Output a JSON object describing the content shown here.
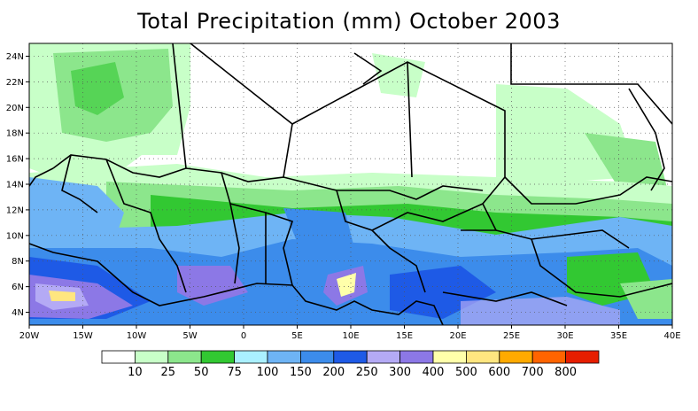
{
  "title": "Total Precipitation (mm) October 2003",
  "map": {
    "lon_range": [
      -20,
      40
    ],
    "lat_range": [
      3,
      25
    ],
    "lon_ticks": [
      {
        "value": -20,
        "label": "20W"
      },
      {
        "value": -15,
        "label": "15W"
      },
      {
        "value": -10,
        "label": "10W"
      },
      {
        "value": -5,
        "label": "5W"
      },
      {
        "value": 0,
        "label": "0"
      },
      {
        "value": 5,
        "label": "5E"
      },
      {
        "value": 10,
        "label": "10E"
      },
      {
        "value": 15,
        "label": "15E"
      },
      {
        "value": 20,
        "label": "20E"
      },
      {
        "value": 25,
        "label": "25E"
      },
      {
        "value": 30,
        "label": "30E"
      },
      {
        "value": 35,
        "label": "35E"
      },
      {
        "value": 40,
        "label": "40E"
      }
    ],
    "lat_ticks": [
      {
        "value": 4,
        "label": "4N"
      },
      {
        "value": 6,
        "label": "6N"
      },
      {
        "value": 8,
        "label": "8N"
      },
      {
        "value": 10,
        "label": "10N"
      },
      {
        "value": 12,
        "label": "12N"
      },
      {
        "value": 14,
        "label": "14N"
      },
      {
        "value": 16,
        "label": "16N"
      },
      {
        "value": 18,
        "label": "18N"
      },
      {
        "value": 20,
        "label": "20N"
      },
      {
        "value": 22,
        "label": "22N"
      },
      {
        "value": 24,
        "label": "24N"
      }
    ],
    "grid": "dotted"
  },
  "legend": {
    "colors": [
      "#ffffff",
      "#c8ffc8",
      "#8ce68c",
      "#32c832",
      "#aaf0ff",
      "#6eb4f5",
      "#3c8ceb",
      "#1e5ae6",
      "#b4aaf5",
      "#8c78e6",
      "#ffffaa",
      "#ffe680",
      "#ffaa00",
      "#ff6400",
      "#e61e00"
    ],
    "labels": [
      "10",
      "25",
      "50",
      "75",
      "100",
      "150",
      "200",
      "250",
      "300",
      "400",
      "500",
      "600",
      "700",
      "800"
    ]
  }
}
